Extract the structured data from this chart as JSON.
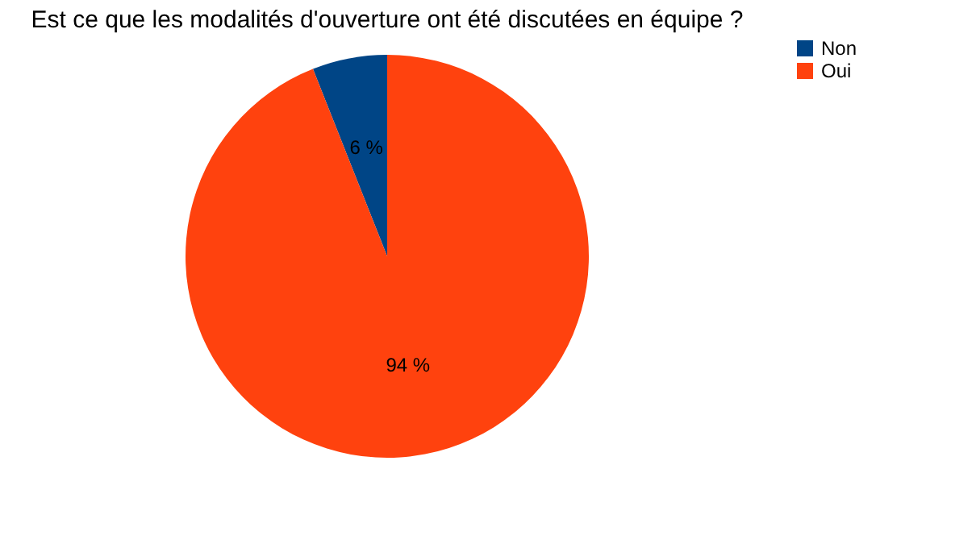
{
  "chart_data": {
    "type": "pie",
    "title": "Est ce que les modalités d'ouverture ont été discutées en équipe ?",
    "categories": [
      "Non",
      "Oui"
    ],
    "values": [
      6,
      94
    ],
    "colors": [
      "#004586",
      "#ff420e"
    ],
    "value_labels": [
      "6 %",
      "94 %"
    ],
    "legend": "right"
  }
}
